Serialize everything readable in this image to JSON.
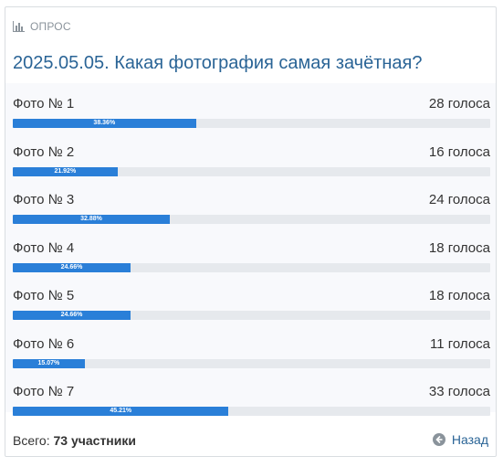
{
  "header": {
    "label": "ОПРОС",
    "icon": "bar-chart-icon"
  },
  "poll": {
    "title": "2025.05.05. Какая фотография самая зачётная?",
    "options": [
      {
        "label": "Фото № 1",
        "votes": "28 голоса",
        "percent": "38.36%",
        "fraction": 0.3836
      },
      {
        "label": "Фото № 2",
        "votes": "16 голоса",
        "percent": "21.92%",
        "fraction": 0.2192
      },
      {
        "label": "Фото № 3",
        "votes": "24 голоса",
        "percent": "32.88%",
        "fraction": 0.3288
      },
      {
        "label": "Фото № 4",
        "votes": "18 голоса",
        "percent": "24.66%",
        "fraction": 0.2466
      },
      {
        "label": "Фото № 5",
        "votes": "18 голоса",
        "percent": "24.66%",
        "fraction": 0.2466
      },
      {
        "label": "Фото № 6",
        "votes": "11 голоса",
        "percent": "15.07%",
        "fraction": 0.1507
      },
      {
        "label": "Фото № 7",
        "votes": "33 голоса",
        "percent": "45.21%",
        "fraction": 0.4521
      }
    ]
  },
  "footer": {
    "total_label": "Всего:",
    "total_value": "73 участники",
    "back_label": "Назад",
    "back_icon": "back-arrow-icon"
  },
  "colors": {
    "accent": "#2a7fd8",
    "title": "#2a6496",
    "track": "#e6e9ed"
  }
}
